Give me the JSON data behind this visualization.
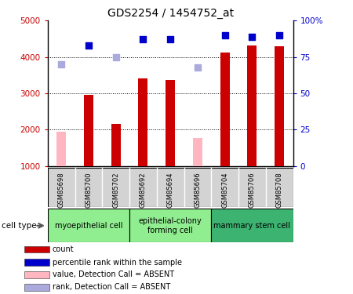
{
  "title": "GDS2254 / 1454752_at",
  "samples": [
    "GSM85698",
    "GSM85700",
    "GSM85702",
    "GSM85692",
    "GSM85694",
    "GSM85696",
    "GSM85704",
    "GSM85706",
    "GSM85708"
  ],
  "counts": [
    1950,
    2950,
    2160,
    3420,
    3360,
    1770,
    4120,
    4320,
    4300
  ],
  "count_absent": [
    true,
    false,
    false,
    false,
    false,
    true,
    false,
    false,
    false
  ],
  "percentile_ranks": [
    70,
    83,
    75,
    87,
    87,
    68,
    90,
    89,
    90
  ],
  "rank_absent": [
    true,
    false,
    true,
    false,
    false,
    true,
    false,
    false,
    false
  ],
  "ylim_left": [
    1000,
    5000
  ],
  "ylim_right": [
    0,
    100
  ],
  "yticks_left": [
    1000,
    2000,
    3000,
    4000,
    5000
  ],
  "yticks_right": [
    0,
    25,
    50,
    75,
    100
  ],
  "ytick_labels_right": [
    "0",
    "25",
    "50",
    "75",
    "100%"
  ],
  "cell_groups": [
    {
      "label": "myoepithelial cell",
      "start": 0,
      "end": 3,
      "color": "#90EE90"
    },
    {
      "label": "epithelial-colony\nforming cell",
      "start": 3,
      "end": 6,
      "color": "#90EE90"
    },
    {
      "label": "mammary stem cell",
      "start": 6,
      "end": 9,
      "color": "#3CB371"
    }
  ],
  "bar_color_present": "#CC0000",
  "bar_color_absent": "#FFB6C1",
  "dot_color_present": "#0000CC",
  "dot_color_absent": "#AAAADD",
  "left_tick_color": "#CC0000",
  "right_tick_color": "#0000CC",
  "bar_width": 0.35,
  "dot_size": 40,
  "legend_items": [
    {
      "label": "count",
      "color": "#CC0000"
    },
    {
      "label": "percentile rank within the sample",
      "color": "#0000CC"
    },
    {
      "label": "value, Detection Call = ABSENT",
      "color": "#FFB6C1"
    },
    {
      "label": "rank, Detection Call = ABSENT",
      "color": "#AAAADD"
    }
  ]
}
